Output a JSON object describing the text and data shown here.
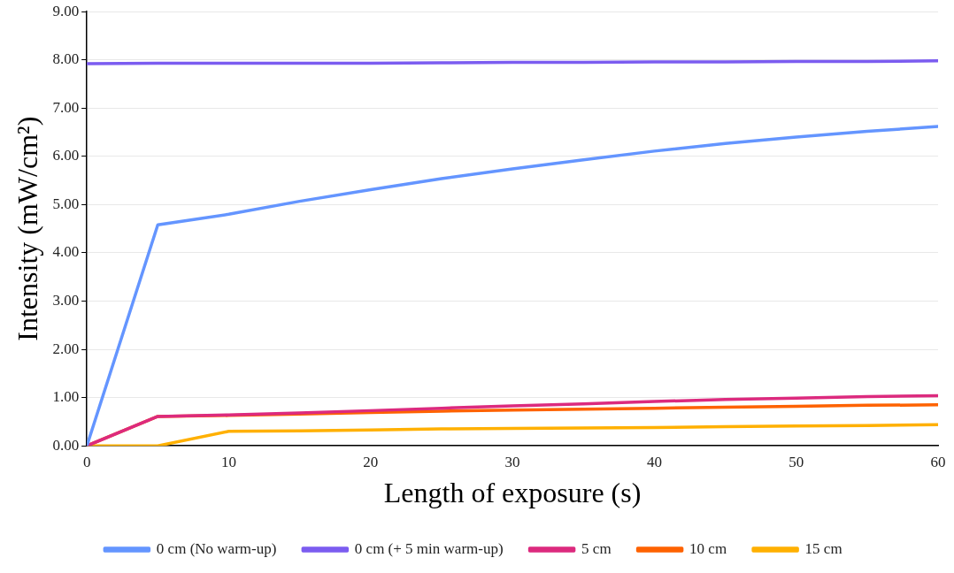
{
  "chart_data": {
    "type": "line",
    "xlabel": "Length of exposure (s)",
    "ylabel": "Intensity (mW/cm²)",
    "x": [
      0,
      5,
      10,
      15,
      20,
      25,
      30,
      35,
      40,
      45,
      50,
      55,
      60
    ],
    "series": [
      {
        "name": "0 cm (No warm-up)",
        "color": "#6495ff",
        "values": [
          0,
          4.58,
          4.8,
          5.07,
          5.31,
          5.54,
          5.74,
          5.93,
          6.11,
          6.27,
          6.4,
          6.52,
          6.62
        ]
      },
      {
        "name": "0 cm (+ 5 min warm-up)",
        "color": "#7b5cf0",
        "values": [
          7.92,
          7.93,
          7.93,
          7.93,
          7.93,
          7.94,
          7.95,
          7.95,
          7.96,
          7.96,
          7.97,
          7.97,
          7.98
        ]
      },
      {
        "name": "5 cm",
        "color": "#dc2a7e",
        "values": [
          0,
          0.61,
          0.64,
          0.68,
          0.73,
          0.78,
          0.83,
          0.87,
          0.92,
          0.96,
          0.99,
          1.02,
          1.04
        ]
      },
      {
        "name": "10 cm",
        "color": "#fe6200",
        "values": [
          0,
          0.61,
          0.63,
          0.66,
          0.69,
          0.72,
          0.74,
          0.76,
          0.78,
          0.8,
          0.82,
          0.84,
          0.85
        ]
      },
      {
        "name": "15 cm",
        "color": "#ffb000",
        "values": [
          0,
          0,
          0.3,
          0.31,
          0.33,
          0.35,
          0.36,
          0.37,
          0.38,
          0.4,
          0.41,
          0.42,
          0.44
        ]
      }
    ],
    "xlim": [
      0,
      60
    ],
    "xticks": [
      0,
      10,
      20,
      30,
      40,
      50,
      60
    ],
    "ylim": [
      0,
      9
    ],
    "yticks": [
      {
        "value": 0,
        "label": "0.00"
      },
      {
        "value": 1,
        "label": "1.00"
      },
      {
        "value": 2,
        "label": "2.00"
      },
      {
        "value": 3,
        "label": "3.00"
      },
      {
        "value": 4,
        "label": "4.00"
      },
      {
        "value": 5,
        "label": "5.00"
      },
      {
        "value": 6,
        "label": "6.00"
      },
      {
        "value": 7,
        "label": "7.00"
      },
      {
        "value": 8,
        "label": "8.00"
      },
      {
        "value": 9,
        "label": "9.00"
      }
    ],
    "grid": "y",
    "legend": "bottom",
    "marker": "none",
    "line_style": "solid"
  }
}
